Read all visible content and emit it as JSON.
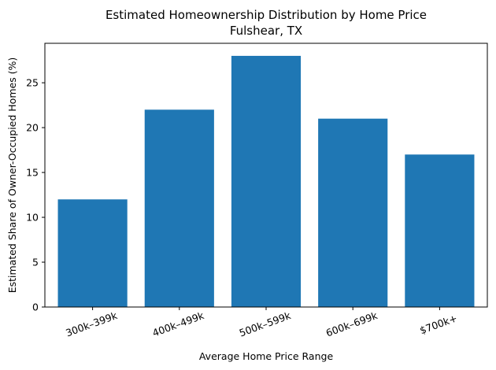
{
  "chart_data": {
    "type": "bar",
    "title": "Estimated Homeownership Distribution by Home Price",
    "subtitle": "Fulshear, TX",
    "xlabel": "Average Home Price Range",
    "ylabel": "Estimated Share of Owner-Occupied Homes (%)",
    "categories": [
      "300k–399k",
      "400k–499k",
      "500k–599k",
      "600k–699k",
      "$700k+"
    ],
    "values": [
      12,
      22,
      28,
      21,
      17
    ],
    "ylim": [
      0,
      29.4
    ],
    "yticks": [
      0,
      5,
      10,
      15,
      20,
      25
    ],
    "grid": false,
    "bar_color": "#1f77b4"
  }
}
